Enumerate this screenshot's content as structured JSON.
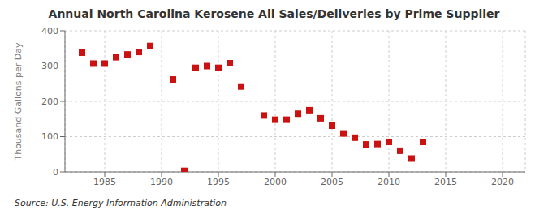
{
  "chart_data": {
    "type": "scatter",
    "title": "Annual North Carolina Kerosene All Sales/Deliveries by Prime Supplier",
    "y_label": "Thousand Gallons per Day",
    "annotation": "Source: U.S. Energy Information Administration",
    "color": "#cc1111",
    "marker": "square",
    "grid": true,
    "xlim": [
      1981.5,
      2022
    ],
    "ylim": [
      0,
      400
    ],
    "xticks": [
      1985,
      1990,
      1995,
      2000,
      2005,
      2010,
      2015,
      2020
    ],
    "yticks": [
      0,
      100,
      200,
      300,
      400
    ],
    "x": [
      1983,
      1984,
      1985,
      1986,
      1987,
      1988,
      1989,
      1991,
      1992,
      1993,
      1994,
      1995,
      1996,
      1997,
      1999,
      2000,
      2001,
      2002,
      2003,
      2004,
      2005,
      2006,
      2007,
      2008,
      2009,
      2010,
      2011,
      2012,
      2013
    ],
    "values": [
      338,
      307,
      307,
      325,
      333,
      340,
      357,
      262,
      3,
      295,
      300,
      295,
      308,
      242,
      160,
      148,
      148,
      165,
      175,
      152,
      131,
      109,
      97,
      78,
      79,
      85,
      60,
      38,
      85
    ]
  }
}
